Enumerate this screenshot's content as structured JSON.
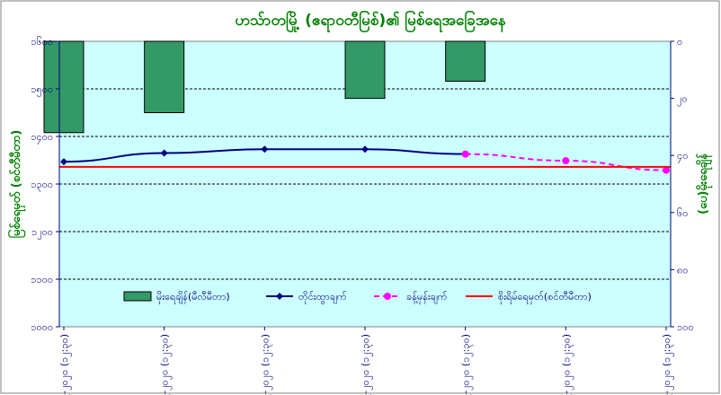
{
  "chart_data": {
    "type": "bar+line",
    "title": "ဟသ်ာတမြို့ (ဧရာဝတီမြစ်)၏ မြစ်ရေအခြေအနေ",
    "left_axis": {
      "label": "မြစ်ရေမှတ် (စင်တီမီတာ)",
      "ticks": [
        "၁၆၀၀",
        "၁၅၀၀",
        "၁၄၀၀",
        "၁၃၀၀",
        "၁၂၀၀",
        "၁၁၀၀",
        "၁၀၀၀"
      ],
      "tick_values": [
        1600,
        1500,
        1400,
        1300,
        1200,
        1100,
        1000
      ],
      "ylim": [
        1000,
        1600
      ]
    },
    "right_axis": {
      "label": "(ပေ)မိုးရေချိန်",
      "ticks": [
        "၀",
        "၂၀",
        "၄၀",
        "၆၀",
        "၈၀",
        "၁၀၀"
      ],
      "tick_values": [
        0,
        20,
        40,
        60,
        80,
        100
      ],
      "ylim": [
        0,
        100
      ],
      "inverted": true
    },
    "categories": [
      "၈-၉-၂၀၂၀ (၁၂:၃၀)",
      "၉-၉-၂၀၂၀ (၁၂:၃၀)",
      "၁၀-၉-၂၀၂၀ (၁၂:၃၀)",
      "၁၁-၉-၂၀၂၀ (၁၂:၃၀)",
      "၁၂-၉-၂၀၂၀ (၁၂:၃၀)",
      "၁၃-၉-၂၀၂၀ (၁၂:၃၀)",
      "၁၄-၉-၂၀၂၀ (၁၂:၃၀)"
    ],
    "series": [
      {
        "name": "မိုးရေချိန်(မီလီမီတာ)",
        "kind": "bar",
        "axis": "right",
        "color": "#339966",
        "values": [
          32,
          25,
          null,
          20,
          14,
          null,
          null
        ]
      },
      {
        "name": "တိုင်းထွာချက်",
        "kind": "line",
        "axis": "left",
        "color": "#000080",
        "marker": "diamond",
        "values": [
          1347,
          1365,
          1373,
          1373,
          1363,
          null,
          null
        ]
      },
      {
        "name": "ခန့်မှန်းချက်",
        "kind": "line-dashed",
        "axis": "left",
        "color": "#ff00ff",
        "marker": "circle",
        "values": [
          null,
          null,
          null,
          null,
          1363,
          1349,
          1329
        ]
      },
      {
        "name": "စိုးရိမ်ရေမှတ်(စင်တီမီတာ)",
        "kind": "hline",
        "axis": "left",
        "color": "#ff0000",
        "value": 1336
      }
    ],
    "grid": true,
    "legend": "bottom-inside",
    "colors": {
      "plot_bg": "#ccffff",
      "title": "#008000",
      "axis_text": "#000080",
      "border": "#808080"
    }
  }
}
